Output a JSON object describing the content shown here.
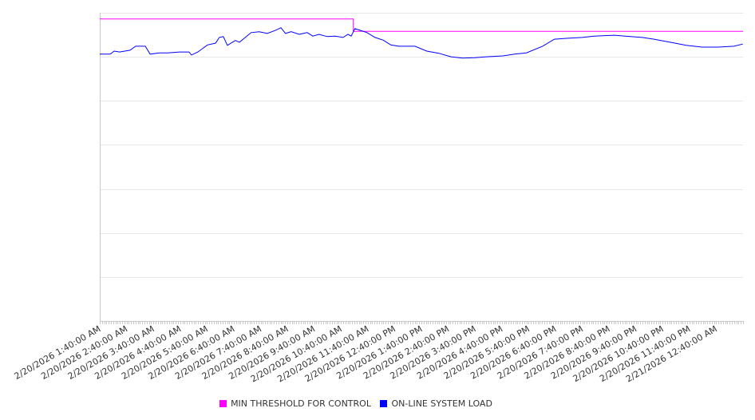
{
  "chart_data": {
    "type": "line",
    "title": "",
    "xlabel": "",
    "ylabel": "",
    "x_unit": "hours since 2/20/2026 1:40:00 AM",
    "xlim": [
      0,
      24
    ],
    "ylim": [
      0,
      700
    ],
    "grid": true,
    "y_tick_labels_shown": false,
    "legend_position": "bottom",
    "x_tick_labels": [
      "2/20/2026 1:40:00 AM",
      "2/20/2026 2:40:00 AM",
      "2/20/2026 3:40:00 AM",
      "2/20/2026 4:40:00 AM",
      "2/20/2026 5:40:00 AM",
      "2/20/2026 6:40:00 AM",
      "2/20/2026 7:40:00 AM",
      "2/20/2026 8:40:00 AM",
      "2/20/2026 9:40:00 AM",
      "2/20/2026 10:40:00 AM",
      "2/20/2026 11:40:00 AM",
      "2/20/2026 12:40:00 PM",
      "2/20/2026 1:40:00 PM",
      "2/20/2026 2:40:00 PM",
      "2/20/2026 3:40:00 PM",
      "2/20/2026 4:40:00 PM",
      "2/20/2026 5:40:00 PM",
      "2/20/2026 6:40:00 PM",
      "2/20/2026 7:40:00 PM",
      "2/20/2026 8:40:00 PM",
      "2/20/2026 9:40:00 PM",
      "2/20/2026 10:40:00 PM",
      "2/20/2026 11:40:00 PM",
      "2/21/2026 12:40:00 AM"
    ],
    "series": [
      {
        "name": "MIN THRESHOLD FOR CONTROL",
        "color": "#ff00ff",
        "x": [
          0,
          9.46,
          9.46,
          24
        ],
        "y": [
          686,
          686,
          658,
          658
        ]
      },
      {
        "name": "ON-LINE SYSTEM LOAD",
        "color": "#0000ff",
        "x": [
          0,
          0.39,
          0.54,
          0.74,
          1.13,
          1.34,
          1.7,
          1.88,
          2.23,
          2.53,
          2.98,
          3.33,
          3.42,
          3.66,
          4.02,
          4.32,
          4.46,
          4.61,
          4.76,
          5.06,
          5.21,
          5.65,
          5.95,
          6.25,
          6.55,
          6.76,
          6.93,
          7.14,
          7.44,
          7.74,
          7.95,
          8.18,
          8.48,
          8.78,
          9.08,
          9.26,
          9.38,
          9.52,
          9.73,
          9.97,
          10.27,
          10.57,
          10.86,
          11.16,
          11.76,
          12.2,
          12.65,
          13.1,
          13.54,
          13.99,
          14.43,
          15.03,
          15.48,
          15.92,
          16.52,
          16.96,
          17.41,
          18.01,
          18.45,
          19.2,
          19.79,
          20.24,
          20.68,
          21.28,
          21.88,
          22.47,
          23.07,
          23.66,
          23.99
        ],
        "y": [
          606,
          606,
          613,
          611,
          615,
          624,
          624,
          606,
          609,
          609,
          611,
          611,
          604,
          611,
          627,
          631,
          644,
          646,
          626,
          637,
          633,
          655,
          657,
          653,
          660,
          666,
          653,
          657,
          651,
          655,
          647,
          651,
          646,
          647,
          644,
          651,
          647,
          664,
          660,
          655,
          644,
          638,
          627,
          624,
          624,
          613,
          608,
          600,
          597,
          598,
          600,
          602,
          606,
          609,
          624,
          640,
          642,
          644,
          647,
          649,
          646,
          644,
          640,
          633,
          626,
          622,
          622,
          624,
          629
        ]
      }
    ]
  },
  "legend": [
    "MIN THRESHOLD FOR CONTROL",
    "ON-LINE SYSTEM LOAD"
  ]
}
